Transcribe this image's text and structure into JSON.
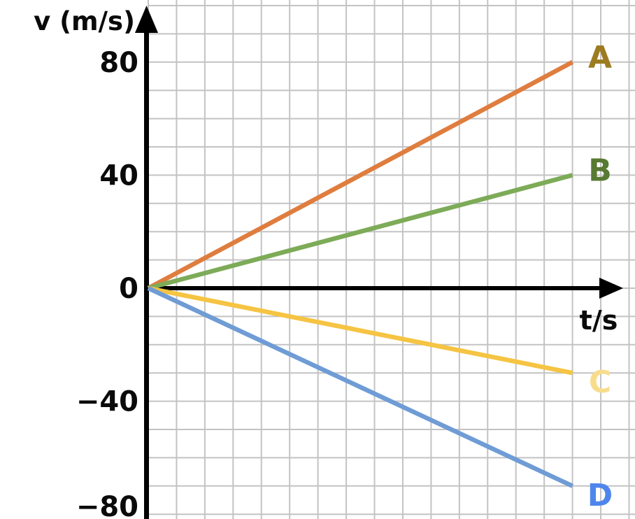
{
  "chart_data": {
    "type": "line",
    "xlabel": "t/s",
    "ylabel": "v (m/s)",
    "grid": true,
    "legend_position": "labels-at-line-ends",
    "x_axis": {
      "label": "t/s",
      "numeric_ticks_shown": false,
      "grid_cells_visible": 17,
      "lines_end_at_cell": 15
    },
    "y_axis": {
      "label": "v (m/s)",
      "units_per_grid_cell": 10,
      "range": [
        -80,
        80
      ],
      "ticks": [
        {
          "value": 80,
          "label": "80"
        },
        {
          "value": 40,
          "label": "40"
        },
        {
          "value": 0,
          "label": "0"
        },
        {
          "value": -40,
          "label": "−40"
        },
        {
          "value": -80,
          "label": "−80"
        }
      ]
    },
    "series": [
      {
        "name": "A",
        "line_color": "#DF7D3F",
        "label_color": "#9C7B21",
        "v_start": 0,
        "v_end": 80,
        "points_cells": [
          [
            0,
            0
          ],
          [
            15,
            80
          ]
        ]
      },
      {
        "name": "B",
        "line_color": "#7DAB58",
        "label_color": "#587A32",
        "v_start": 0,
        "v_end": 40,
        "points_cells": [
          [
            0,
            0
          ],
          [
            15,
            40
          ]
        ]
      },
      {
        "name": "C",
        "line_color": "#F6C443",
        "label_color": "#F8DC8C",
        "v_start": 0,
        "v_end": -30,
        "points_cells": [
          [
            0,
            0
          ],
          [
            15,
            -30
          ]
        ]
      },
      {
        "name": "D",
        "line_color": "#6F9CD5",
        "label_color": "#4E86EC",
        "v_start": 0,
        "v_end": -70,
        "points_cells": [
          [
            0,
            0
          ],
          [
            15,
            -70
          ]
        ]
      }
    ],
    "colors": {
      "grid": "#C3C3C3",
      "axis": "#000000",
      "text": "#0A0A0A",
      "background": "#FFFFFF"
    }
  }
}
